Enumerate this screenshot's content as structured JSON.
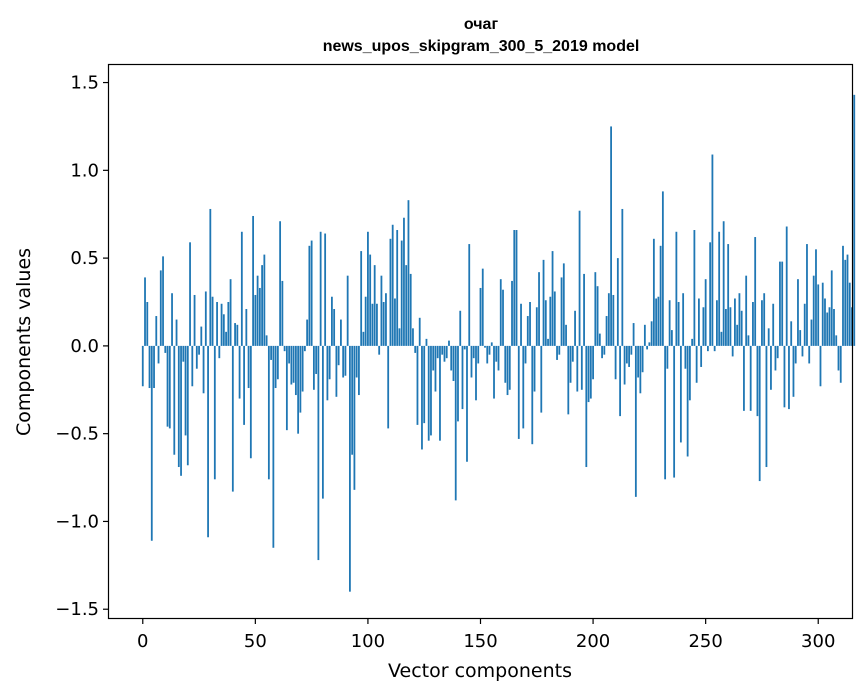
{
  "chart_data": {
    "type": "bar",
    "title_line1": "очаг",
    "title_line2": "news_upos_skipgram_300_5_2019 model",
    "xlabel": "Vector components",
    "ylabel": "Components values",
    "xlim": [
      -15,
      315
    ],
    "ylim": [
      -1.55,
      1.6
    ],
    "xticks": [
      0,
      50,
      100,
      150,
      200,
      250,
      300
    ],
    "xtick_labels": [
      "0",
      "50",
      "100",
      "150",
      "200",
      "250",
      "300"
    ],
    "yticks": [
      -1.5,
      -1.0,
      -0.5,
      0.0,
      0.5,
      1.0,
      1.5
    ],
    "ytick_labels": [
      "−1.5",
      "−1.0",
      "−0.5",
      "0.0",
      "0.5",
      "1.0",
      "1.5"
    ],
    "bar_color": "#1f77b4",
    "values": [
      -0.23,
      0.39,
      0.25,
      -0.24,
      -1.11,
      -0.24,
      0.17,
      -0.1,
      0.43,
      0.51,
      -0.04,
      -0.46,
      -0.47,
      0.3,
      -0.62,
      0.15,
      -0.69,
      -0.74,
      -0.09,
      -0.51,
      -0.68,
      0.59,
      -0.23,
      0.29,
      -0.13,
      -0.05,
      0.11,
      -0.27,
      0.31,
      -1.09,
      0.78,
      0.28,
      -0.76,
      0.25,
      -0.07,
      0.24,
      0.18,
      0.08,
      0.25,
      0.38,
      -0.83,
      0.13,
      0.12,
      -0.3,
      0.65,
      -0.45,
      0.21,
      -0.24,
      -0.64,
      0.74,
      0.29,
      0.4,
      0.33,
      0.46,
      0.52,
      0.06,
      -0.76,
      -0.08,
      -1.15,
      -0.24,
      -0.19,
      0.71,
      0.37,
      -0.03,
      -0.48,
      -0.1,
      -0.22,
      -0.21,
      -0.28,
      -0.5,
      -0.38,
      -0.26,
      -0.03,
      0.15,
      0.57,
      0.6,
      -0.25,
      -0.16,
      -1.22,
      0.65,
      -0.87,
      0.64,
      -0.31,
      -0.19,
      0.28,
      0.21,
      -0.29,
      -0.11,
      0.15,
      -0.18,
      -0.17,
      0.4,
      -1.4,
      -0.62,
      -0.82,
      -0.18,
      -0.28,
      0.54,
      0.08,
      0.28,
      0.65,
      0.52,
      0.24,
      0.46,
      0.24,
      -0.05,
      0.4,
      0.25,
      0.3,
      -0.47,
      0.61,
      0.69,
      0.27,
      0.66,
      0.1,
      0.6,
      0.73,
      0.46,
      0.83,
      0.41,
      0.1,
      -0.04,
      -0.45,
      0.16,
      -0.59,
      -0.44,
      0.04,
      -0.54,
      -0.51,
      -0.14,
      -0.26,
      -0.07,
      -0.54,
      -0.05,
      -0.09,
      -0.07,
      0.03,
      -0.14,
      -0.2,
      -0.88,
      -0.43,
      0.2,
      -0.36,
      -0.02,
      -0.66,
      0.58,
      -0.18,
      -0.07,
      -0.31,
      -0.1,
      0.33,
      0.44,
      -0.01,
      -0.1,
      -0.05,
      0.02,
      -0.3,
      -0.09,
      -0.14,
      0.38,
      0.32,
      -0.21,
      -0.28,
      -0.25,
      0.37,
      0.66,
      0.66,
      -0.53,
      0.24,
      -0.47,
      -0.1,
      0.17,
      0.25,
      -0.56,
      -0.26,
      0.22,
      0.42,
      -0.38,
      0.49,
      0.26,
      0.04,
      0.28,
      0.54,
      0.31,
      -0.08,
      -0.05,
      0.39,
      0.47,
      0.12,
      -0.39,
      -0.21,
      -0.09,
      0.2,
      -0.26,
      0.77,
      -0.25,
      0.41,
      -0.69,
      -0.32,
      -0.3,
      -0.19,
      0.42,
      0.34,
      0.07,
      -0.07,
      -0.05,
      0.17,
      0.3,
      1.25,
      0.29,
      -0.19,
      0.5,
      -0.4,
      0.78,
      -0.22,
      -0.1,
      -0.12,
      -0.05,
      0.13,
      -0.86,
      -0.18,
      -0.27,
      -0.15,
      0.12,
      -0.02,
      0.02,
      0.14,
      0.61,
      0.27,
      0.28,
      0.57,
      0.88,
      -0.76,
      -0.13,
      0.26,
      0.09,
      -0.75,
      0.65,
      0.25,
      -0.55,
      0.3,
      -0.13,
      -0.63,
      -0.31,
      0.04,
      0.66,
      -0.21,
      0.27,
      -0.12,
      0.22,
      0.38,
      -0.03,
      0.59,
      1.09,
      -0.03,
      0.26,
      0.65,
      0.08,
      0.71,
      0.21,
      0.58,
      0.22,
      -0.06,
      0.27,
      0.12,
      0.3,
      0.2,
      -0.37,
      0.4,
      0.06,
      -0.37,
      0.25,
      0.62,
      -0.4,
      -0.77,
      0.26,
      0.3,
      -0.69,
      0.1,
      -0.25,
      0.24,
      -0.14,
      -0.07,
      0.48,
      0.48,
      -0.35,
      0.68,
      -0.36,
      0.14,
      -0.29,
      -0.1,
      0.38,
      0.09,
      -0.06,
      0.24,
      0.58,
      -0.1,
      0.15,
      0.4,
      0.55,
      0.35,
      -0.23,
      0.36,
      0.27,
      0.19,
      0.22,
      0.43,
      0.21,
      0.06,
      -0.14,
      -0.21,
      0.57,
      0.49,
      0.52,
      0.36,
      0.22,
      1.43
    ]
  }
}
